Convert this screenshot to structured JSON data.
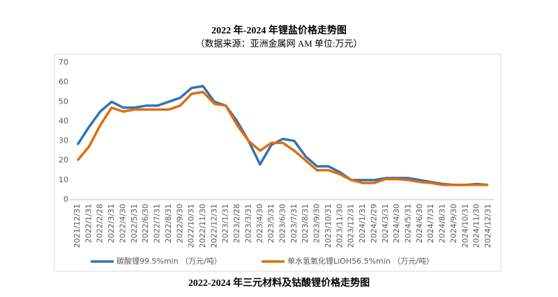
{
  "chart_data": {
    "type": "line",
    "title": "2022 年-2024 年锂盐价格走势图",
    "subtitle": "（数据来源：亚洲金属网 AM      单位:万元）",
    "caption": "2022-2024 年三元材料及钴酸锂价格走势图",
    "categories": [
      "2021/12/31",
      "2022/1/31",
      "2022/2/28",
      "2022/3/31",
      "2022/4/30",
      "2022/5/31",
      "2022/6/30",
      "2022/7/31",
      "2022/8/31",
      "2022/9/30",
      "2022/10/31",
      "2022/11/30",
      "2022/12/31",
      "2023/1/31",
      "2023/2/28",
      "2023/3/31",
      "2023/4/30",
      "2023/5/31",
      "2023/6/30",
      "2023/7/31",
      "2023/8/31",
      "2023/9/30",
      "2023/10/31",
      "2023/11/30",
      "2023/12/31",
      "2024/1/31",
      "2024/2/29",
      "2024/3/31",
      "2024/4/30",
      "2024/5/31",
      "2024/6/30",
      "2024/7/31",
      "2024/8/31",
      "2024/9/30",
      "2024/10/31",
      "2024/11/30",
      "2024/12/31"
    ],
    "series": [
      {
        "name": "碳酸锂99.5%min （万元/吨）",
        "color": "#2e75b6",
        "values": [
          28,
          37,
          45,
          50,
          47,
          47,
          48,
          48,
          50,
          52,
          57,
          58,
          50,
          48,
          40,
          30,
          18,
          28,
          31,
          30,
          22,
          17,
          17,
          14,
          10,
          10,
          10,
          11,
          11,
          11,
          10,
          9,
          8,
          7.5,
          7.5,
          8,
          7.5
        ]
      },
      {
        "name": "单水氢氧化锂LiOH56.5%min （万元/吨）",
        "color": "#e36c0a",
        "values": [
          20,
          27,
          38,
          47,
          45,
          46,
          46,
          46,
          46,
          48,
          54,
          55,
          49,
          48,
          38,
          30,
          25,
          29,
          29,
          25,
          20,
          15,
          15,
          13,
          10,
          8.5,
          8.5,
          10.5,
          10.5,
          10,
          9,
          8.5,
          7.5,
          7.5,
          7.5,
          7.5,
          7.5
        ]
      }
    ],
    "ylim": [
      0,
      70
    ],
    "yticks": [
      0,
      10,
      20,
      30,
      40,
      50,
      60,
      70
    ],
    "grid": false
  }
}
